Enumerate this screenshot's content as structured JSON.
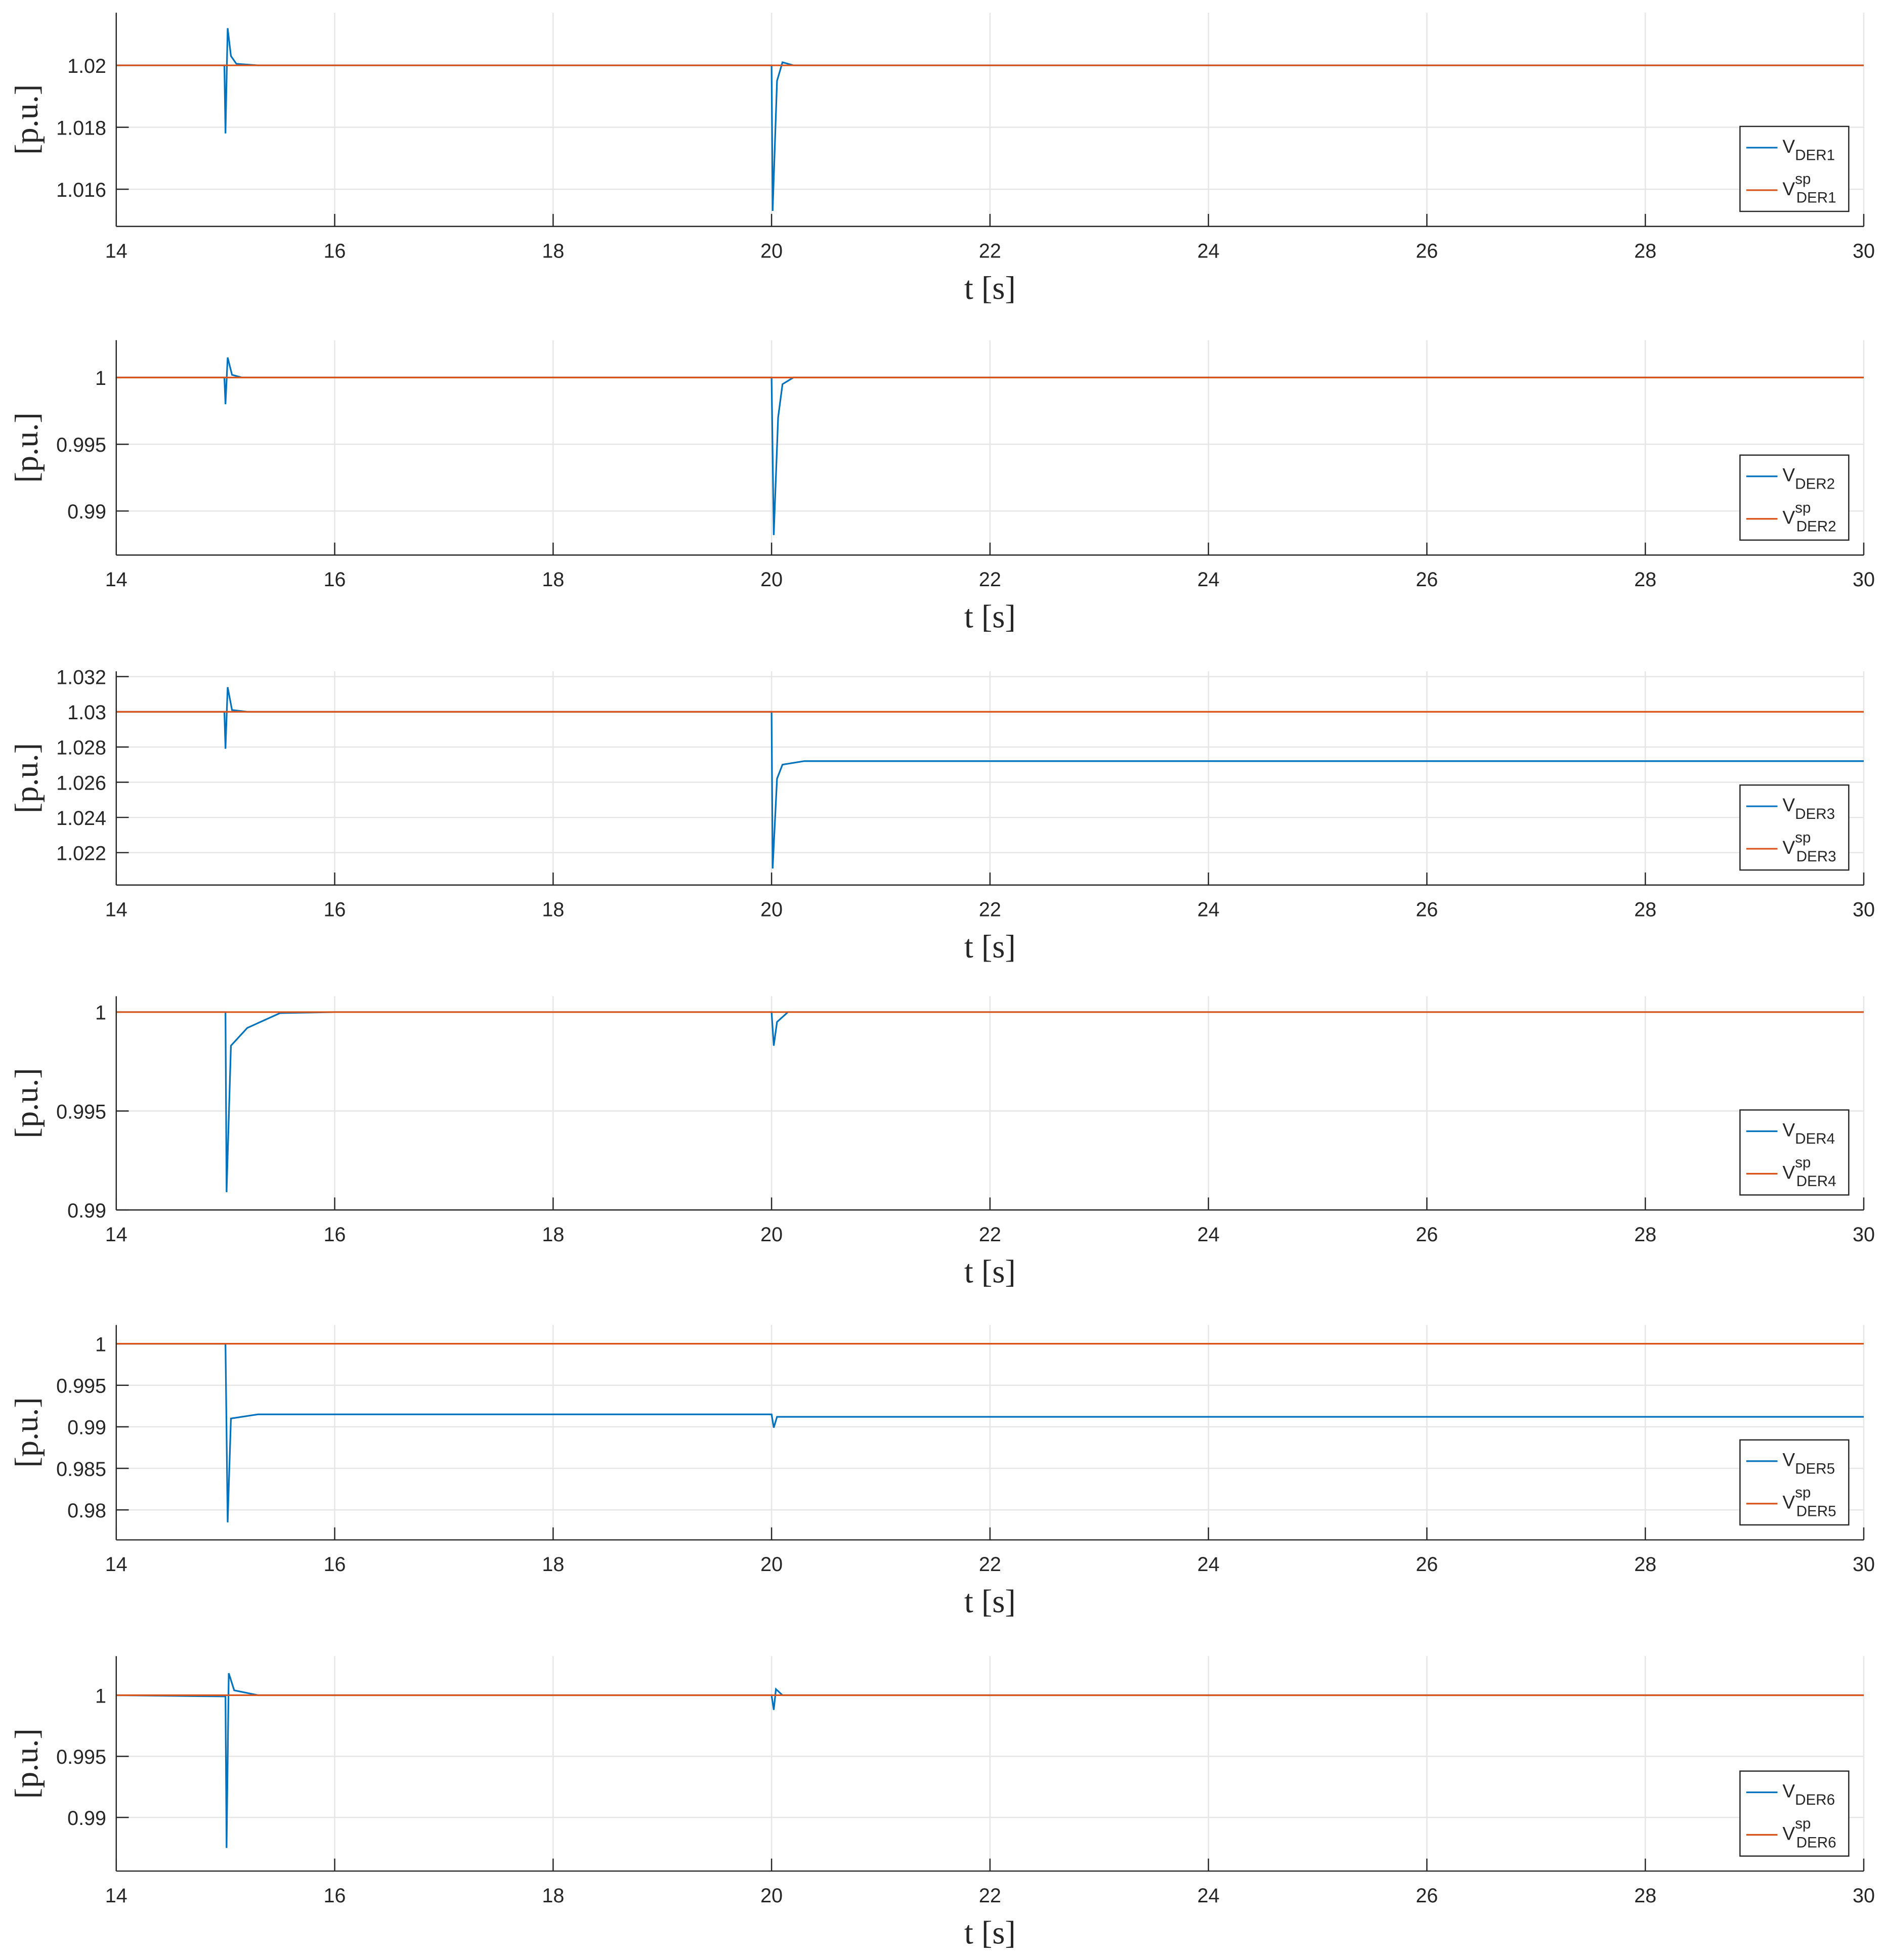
{
  "chart_data": [
    {
      "type": "line",
      "xlabel": "t [s]",
      "ylabel": "[p.u.]",
      "grid": true,
      "legend": "southeast",
      "xlim": [
        14,
        30
      ],
      "xticks": [
        14,
        16,
        18,
        20,
        22,
        24,
        26,
        28,
        30
      ],
      "ylim": [
        1.0148,
        1.0217
      ],
      "yticks": [
        1.016,
        1.018,
        1.02
      ],
      "series": [
        {
          "name": "V_{DER1}",
          "color": "#0072bd",
          "x": [
            14,
            14.99,
            15.0,
            15.02,
            15.05,
            15.1,
            15.3,
            20.0,
            20.01,
            20.05,
            20.1,
            20.2,
            30
          ],
          "values": [
            1.02,
            1.02,
            1.0178,
            1.0212,
            1.0203,
            1.02005,
            1.02,
            1.02,
            1.0153,
            1.0195,
            1.0201,
            1.02,
            1.02
          ]
        },
        {
          "name": "V^{sp}_{DER1}",
          "color": "#d95319",
          "x": [
            14,
            30
          ],
          "values": [
            1.02,
            1.02
          ]
        }
      ]
    },
    {
      "type": "line",
      "xlabel": "t [s]",
      "ylabel": "[p.u.]",
      "grid": true,
      "legend": "southeast",
      "xlim": [
        14,
        30
      ],
      "xticks": [
        14,
        16,
        18,
        20,
        22,
        24,
        26,
        28,
        30
      ],
      "ylim": [
        0.9867,
        1.0028
      ],
      "yticks": [
        0.99,
        0.995,
        1
      ],
      "series": [
        {
          "name": "V_{DER2}",
          "color": "#0072bd",
          "x": [
            14,
            14.99,
            15.0,
            15.02,
            15.06,
            15.15,
            20.0,
            20.02,
            20.06,
            20.1,
            20.2,
            30
          ],
          "values": [
            1,
            1,
            0.998,
            1.0015,
            1.0002,
            1,
            1,
            0.9882,
            0.997,
            0.9995,
            1,
            1
          ]
        },
        {
          "name": "V^{sp}_{DER2}",
          "color": "#d95319",
          "x": [
            14,
            30
          ],
          "values": [
            1,
            1
          ]
        }
      ]
    },
    {
      "type": "line",
      "xlabel": "t [s]",
      "ylabel": "[p.u.]",
      "grid": true,
      "legend": "southeast",
      "xlim": [
        14,
        30
      ],
      "xticks": [
        14,
        16,
        18,
        20,
        22,
        24,
        26,
        28,
        30
      ],
      "ylim": [
        1.02016,
        1.0323
      ],
      "yticks": [
        1.022,
        1.024,
        1.026,
        1.028,
        1.03,
        1.032
      ],
      "series": [
        {
          "name": "V_{DER3}",
          "color": "#0072bd",
          "x": [
            14,
            14.99,
            15.0,
            15.02,
            15.06,
            15.2,
            20.0,
            20.01,
            20.05,
            20.1,
            20.3,
            30
          ],
          "values": [
            1.03,
            1.03,
            1.0279,
            1.0314,
            1.0301,
            1.03,
            1.03,
            1.0211,
            1.0262,
            1.027,
            1.0272,
            1.0272
          ]
        },
        {
          "name": "V^{sp}_{DER3}",
          "color": "#d95319",
          "x": [
            14,
            30
          ],
          "values": [
            1.03,
            1.03
          ]
        }
      ]
    },
    {
      "type": "line",
      "xlabel": "t [s]",
      "ylabel": "[p.u.]",
      "grid": true,
      "legend": "southeast",
      "xlim": [
        14,
        30
      ],
      "xticks": [
        14,
        16,
        18,
        20,
        22,
        24,
        26,
        28,
        30
      ],
      "ylim": [
        0.99,
        1.0008
      ],
      "yticks": [
        0.99,
        0.995,
        1
      ],
      "series": [
        {
          "name": "V_{DER4}",
          "color": "#0072bd",
          "x": [
            14,
            15.0,
            15.01,
            15.05,
            15.2,
            15.5,
            16,
            20.0,
            20.02,
            20.05,
            20.15,
            30
          ],
          "values": [
            1,
            1,
            0.9909,
            0.9983,
            0.9992,
            0.99995,
            1,
            1,
            0.9983,
            0.9995,
            1,
            1
          ]
        },
        {
          "name": "V^{sp}_{DER4}",
          "color": "#d95319",
          "x": [
            14,
            30
          ],
          "values": [
            1,
            1
          ]
        }
      ]
    },
    {
      "type": "line",
      "xlabel": "t [s]",
      "ylabel": "[p.u.]",
      "grid": true,
      "legend": "southeast",
      "xlim": [
        14,
        30
      ],
      "xticks": [
        14,
        16,
        18,
        20,
        22,
        24,
        26,
        28,
        30
      ],
      "ylim": [
        0.97639,
        1.00226
      ],
      "yticks": [
        0.98,
        0.985,
        0.99,
        0.995,
        1
      ],
      "series": [
        {
          "name": "V_{DER5}",
          "color": "#0072bd",
          "x": [
            14,
            15.0,
            15.02,
            15.05,
            15.3,
            20.0,
            20.02,
            20.05,
            30
          ],
          "values": [
            1,
            1,
            0.9785,
            0.991,
            0.9915,
            0.9915,
            0.9899,
            0.9912,
            0.9912
          ]
        },
        {
          "name": "V^{sp}_{DER5}",
          "color": "#d95319",
          "x": [
            14,
            30
          ],
          "values": [
            1,
            1
          ]
        }
      ]
    },
    {
      "type": "line",
      "xlabel": "t [s]",
      "ylabel": "[p.u.]",
      "grid": true,
      "legend": "southeast",
      "xlim": [
        14,
        30
      ],
      "xticks": [
        14,
        16,
        18,
        20,
        22,
        24,
        26,
        28,
        30
      ],
      "ylim": [
        0.98561,
        1.0032
      ],
      "yticks": [
        0.99,
        0.995,
        1
      ],
      "series": [
        {
          "name": "V_{DER6}",
          "color": "#0072bd",
          "x": [
            14,
            15.0,
            15.01,
            15.03,
            15.08,
            15.3,
            20.0,
            20.02,
            20.04,
            20.1,
            30
          ],
          "values": [
            1,
            0.9999,
            0.9875,
            1.0018,
            1.0004,
            1,
            1,
            0.9988,
            1.0005,
            1,
            1
          ]
        },
        {
          "name": "V^{sp}_{DER6}",
          "color": "#d95319",
          "x": [
            14,
            30
          ],
          "values": [
            1,
            1
          ]
        }
      ]
    }
  ]
}
